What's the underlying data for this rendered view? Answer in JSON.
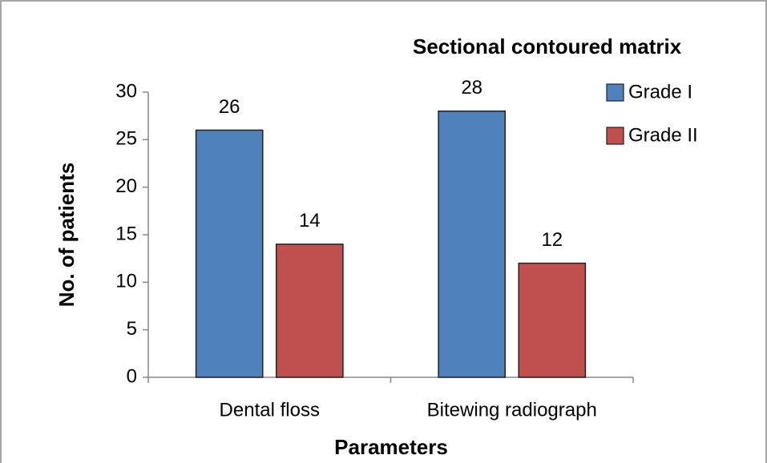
{
  "chart_data": {
    "type": "bar",
    "x_label": "Parameters",
    "y_label": "No. of patients",
    "legend_title": "Sectional contoured matrix",
    "legend": "right",
    "categories": [
      "Dental floss",
      "Bitewing radiograph"
    ],
    "series": [
      {
        "name": "Grade I",
        "color": "#4f81bd",
        "values": [
          26,
          28
        ]
      },
      {
        "name": "Grade II",
        "color": "#c0504d",
        "values": [
          14,
          12
        ]
      }
    ],
    "ylim": [
      0,
      30
    ],
    "yticks": [
      0,
      5,
      10,
      15,
      20,
      25,
      30
    ],
    "grid": false
  }
}
